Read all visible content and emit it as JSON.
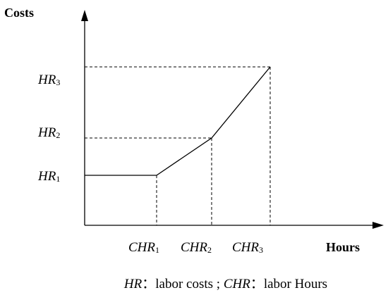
{
  "axes": {
    "y_label": "Costs",
    "x_label": "Hours"
  },
  "y_marks": [
    {
      "name": "HR",
      "sub": "1"
    },
    {
      "name": "HR",
      "sub": "2"
    },
    {
      "name": "HR",
      "sub": "3"
    }
  ],
  "x_marks": [
    {
      "name": "CHR",
      "sub": "1"
    },
    {
      "name": "CHR",
      "sub": "2"
    },
    {
      "name": "CHR",
      "sub": "3"
    }
  ],
  "caption": {
    "term1": "HR",
    "def1": "：labor costs ; ",
    "term2": "CHR",
    "def2": "：labor Hours"
  }
}
